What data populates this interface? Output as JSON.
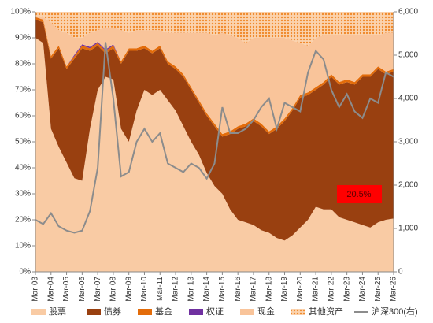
{
  "chart_data": {
    "type": "stacked-area",
    "categories": [
      "Mar-03",
      null,
      "Mar-04",
      null,
      "Mar-05",
      null,
      "Mar-06",
      null,
      "Mar-07",
      null,
      "Mar-08",
      null,
      "Mar-09",
      null,
      "Mar-10",
      null,
      "Mar-11",
      null,
      "Mar-12",
      null,
      "Mar-13",
      null,
      "Mar-14",
      null,
      "Mar-15",
      null,
      "Mar-16",
      null,
      "Mar-17",
      null,
      "Mar-18",
      null,
      "Mar-19",
      null,
      "Mar-20",
      null,
      "Mar-21",
      null,
      "Mar-22",
      null,
      "Mar-23",
      null,
      "Mar-24",
      null,
      "Mar-25",
      null,
      "Mar-26"
    ],
    "series": [
      {
        "name": "股票",
        "color": "#f9cba4",
        "values": [
          90,
          88,
          55,
          48,
          42,
          36,
          35,
          55,
          70,
          75,
          74,
          55,
          50,
          62,
          70,
          68,
          70,
          66,
          62,
          56,
          50,
          45,
          38,
          33,
          30,
          24,
          20,
          19,
          18,
          16,
          15,
          13,
          12,
          14,
          17,
          20,
          25,
          24,
          24,
          21,
          20,
          19,
          18,
          17,
          19,
          20,
          20.5
        ],
        "value_labels": [
          null,
          null,
          null,
          null,
          null,
          null,
          null,
          null,
          null,
          null,
          null,
          null,
          null,
          null,
          null,
          null,
          null,
          null,
          null,
          null,
          null,
          null,
          null,
          null,
          null,
          null,
          null,
          null,
          null,
          null,
          null,
          null,
          null,
          null,
          null,
          null,
          null,
          null,
          null,
          null,
          null,
          null,
          null,
          null,
          null,
          null,
          "20.5%"
        ]
      },
      {
        "name": "债券",
        "color": "#994010",
        "values": [
          7,
          8,
          27,
          38,
          36,
          46,
          51,
          30,
          17,
          9,
          12,
          25,
          35,
          23,
          16,
          16,
          16,
          14,
          16,
          19,
          20,
          20,
          22,
          23,
          22,
          29,
          35,
          37,
          40,
          40,
          38,
          42,
          46,
          48,
          50,
          48,
          45,
          48,
          51,
          51,
          53,
          53,
          57,
          58,
          59,
          56,
          56.5
        ]
      },
      {
        "name": "基金",
        "color": "#e36c0a",
        "values": [
          1,
          1,
          1,
          1,
          1,
          1,
          1,
          1,
          1,
          1,
          1,
          1,
          1,
          1,
          1,
          1,
          1,
          1,
          1,
          1,
          1,
          1,
          1,
          1,
          1,
          1,
          1,
          1,
          1,
          1,
          1,
          1,
          1,
          1,
          1,
          1,
          1,
          1,
          1,
          1,
          1,
          1,
          1,
          1,
          1,
          1,
          1
        ]
      },
      {
        "name": "权证",
        "color": "#7030a0",
        "values": [
          0,
          0,
          0,
          0,
          0,
          0.5,
          0.5,
          0.5,
          0.5,
          0.5,
          0.5,
          0,
          0,
          0,
          0,
          0,
          0,
          0,
          0,
          0,
          0,
          0,
          0,
          0,
          0,
          0,
          0,
          0,
          0,
          0,
          0,
          0,
          0,
          0,
          0,
          0,
          0,
          0,
          0,
          0,
          0,
          0,
          0,
          0,
          0,
          0,
          0
        ]
      },
      {
        "name": "现金",
        "color": "#f9c49a",
        "values": [
          0,
          1,
          13,
          6,
          13,
          6.5,
          2.5,
          5.5,
          4.5,
          8.5,
          6.5,
          12,
          6,
          7,
          6,
          8,
          6,
          11,
          13,
          16,
          21,
          26,
          31,
          34,
          39,
          37,
          34,
          31,
          31,
          33,
          36,
          34,
          31,
          26,
          20,
          18,
          19,
          18,
          15,
          18,
          17,
          18,
          15,
          15,
          12,
          15,
          14
        ]
      },
      {
        "name": "其他资产",
        "color": "#f08a2c",
        "pattern": "dots",
        "values": [
          2,
          2,
          4,
          7,
          8,
          10,
          10,
          8,
          7,
          6,
          6,
          7,
          8,
          7,
          7,
          7,
          7,
          8,
          8,
          8,
          8,
          8,
          8,
          9,
          8,
          9,
          10,
          12,
          10,
          10,
          10,
          10,
          10,
          11,
          12,
          13,
          10,
          9,
          9,
          9,
          9,
          9,
          9,
          9,
          9,
          8,
          8
        ]
      },
      {
        "name": "沪深300(右)",
        "color": "#8c8c8c",
        "axis": "y2",
        "values": [
          1200,
          1100,
          1350,
          1050,
          950,
          900,
          950,
          1400,
          2400,
          5300,
          4000,
          2200,
          2300,
          3000,
          3300,
          3000,
          3200,
          2500,
          2400,
          2300,
          2500,
          2400,
          2150,
          2500,
          3800,
          3200,
          3200,
          3300,
          3500,
          3800,
          4000,
          3300,
          3900,
          3800,
          3700,
          4600,
          5100,
          4900,
          4200,
          3800,
          4100,
          3700,
          3550,
          4000,
          3900,
          4600,
          4500
        ]
      }
    ],
    "ylim": [
      0,
      100
    ],
    "yticks": [
      {
        "value": 0,
        "label": "0%"
      },
      {
        "value": 10,
        "label": "10%"
      },
      {
        "value": 20,
        "label": "20%"
      },
      {
        "value": 30,
        "label": "30%"
      },
      {
        "value": 40,
        "label": "40%"
      },
      {
        "value": 50,
        "label": "50%"
      },
      {
        "value": 60,
        "label": "60%"
      },
      {
        "value": 70,
        "label": "70%"
      },
      {
        "value": 80,
        "label": "80%"
      },
      {
        "value": 90,
        "label": "90%"
      },
      {
        "value": 100,
        "label": "100%"
      }
    ],
    "y2lim": [
      0,
      6000
    ],
    "y2ticks": [
      0,
      {
        "value": 1000,
        "label": "1,000"
      },
      {
        "value": 2000,
        "label": "2,000"
      },
      {
        "value": 3000,
        "label": "3,000"
      },
      {
        "value": 4000,
        "label": "4,000"
      },
      {
        "value": 5000,
        "label": "5,000"
      },
      {
        "value": 6000,
        "label": "6,000"
      }
    ],
    "legend": "bottom"
  }
}
